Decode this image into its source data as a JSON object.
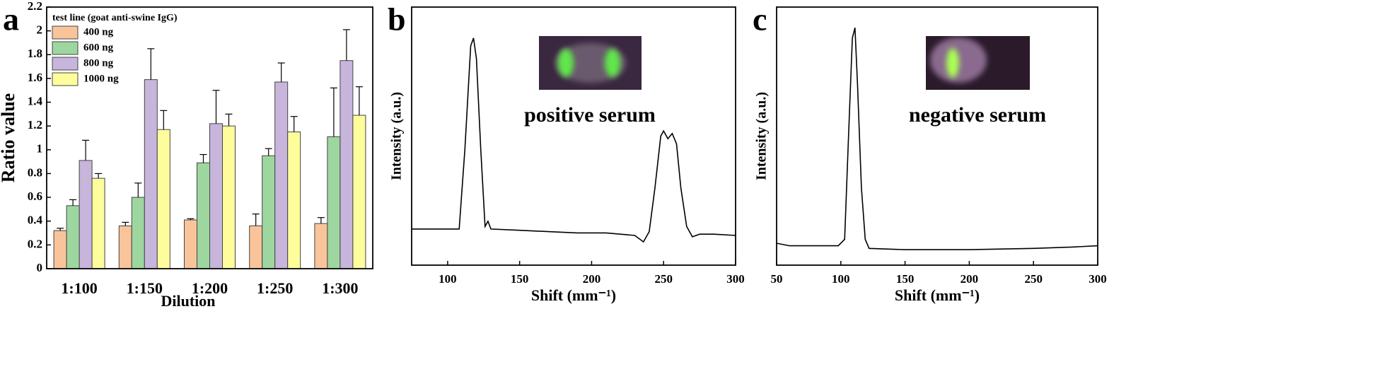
{
  "chart_data": [
    {
      "type": "bar",
      "label": "a",
      "x_label": "Dilution",
      "y_label": "Ratio value",
      "legend_title": "test line (goat anti-swine IgG)",
      "categories": [
        "1:100",
        "1:150",
        "1:200",
        "1:250",
        "1:300"
      ],
      "series": [
        {
          "name": "400 ng",
          "color": "#f9c49a",
          "values": [
            0.32,
            0.36,
            0.41,
            0.36,
            0.38
          ],
          "errors": [
            0.02,
            0.03,
            0.01,
            0.1,
            0.05
          ]
        },
        {
          "name": "600 ng",
          "color": "#9ed6a0",
          "values": [
            0.53,
            0.6,
            0.89,
            0.95,
            1.11
          ],
          "errors": [
            0.05,
            0.12,
            0.07,
            0.06,
            0.41
          ]
        },
        {
          "name": "800 ng",
          "color": "#c7b5dc",
          "values": [
            0.91,
            1.59,
            1.22,
            1.57,
            1.75
          ],
          "errors": [
            0.17,
            0.26,
            0.28,
            0.16,
            0.26
          ]
        },
        {
          "name": "1000 ng",
          "color": "#fdfd9c",
          "values": [
            0.76,
            1.17,
            1.2,
            1.15,
            1.29
          ],
          "errors": [
            0.04,
            0.16,
            0.1,
            0.13,
            0.24
          ]
        }
      ],
      "ylim": [
        0,
        2.2
      ],
      "yticks": [
        0,
        0.2,
        0.4,
        0.6,
        0.8,
        1,
        1.2,
        1.4,
        1.6,
        1.8,
        2,
        2.2
      ]
    },
    {
      "type": "line",
      "label": "b",
      "annotation": "positive serum",
      "x_label": "Shift (mm⁻¹)",
      "y_label": "Intensity (a.u.)",
      "color": "#000000",
      "x": [
        75,
        108,
        112,
        116,
        118,
        120,
        123,
        126,
        128,
        130,
        150,
        170,
        190,
        210,
        220,
        230,
        236,
        240,
        244,
        248,
        250,
        253,
        256,
        259,
        262,
        266,
        270,
        275,
        285,
        300
      ],
      "values": [
        0.14,
        0.14,
        0.45,
        0.85,
        0.88,
        0.8,
        0.45,
        0.15,
        0.17,
        0.14,
        0.135,
        0.13,
        0.125,
        0.125,
        0.12,
        0.115,
        0.09,
        0.13,
        0.3,
        0.5,
        0.52,
        0.49,
        0.51,
        0.47,
        0.3,
        0.15,
        0.11,
        0.12,
        0.12,
        0.115
      ],
      "xlim": [
        75,
        300
      ],
      "xticks": [
        100,
        150,
        200,
        250,
        300
      ],
      "ylim": [
        0,
        1
      ]
    },
    {
      "type": "line",
      "label": "c",
      "annotation": "negative serum",
      "x_label": "Shift (mm⁻¹)",
      "y_label": "Intensity (a.u.)",
      "color": "#000000",
      "x": [
        50,
        60,
        80,
        98,
        103,
        106,
        109,
        111,
        113,
        116,
        119,
        122,
        150,
        200,
        250,
        280,
        300
      ],
      "values": [
        0.085,
        0.075,
        0.075,
        0.075,
        0.1,
        0.5,
        0.88,
        0.92,
        0.7,
        0.3,
        0.1,
        0.065,
        0.06,
        0.06,
        0.065,
        0.07,
        0.075
      ],
      "xlim": [
        50,
        300
      ],
      "xticks": [
        50,
        100,
        150,
        200,
        250,
        300
      ],
      "ylim": [
        0,
        1
      ]
    }
  ]
}
